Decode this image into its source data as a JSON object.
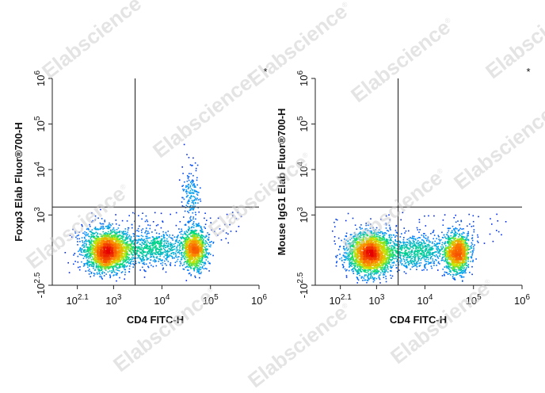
{
  "watermark": {
    "text": "Elabscience",
    "mark": "®"
  },
  "chart_data": [
    {
      "type": "scatter",
      "subtype": "flow-cytometry-density-dot-plot",
      "corner_mark": "*",
      "xlabel": "CD4 FITC-H",
      "ylabel": "Foxp3 Elab Fluor®700-H",
      "x_scale": "logicle",
      "y_scale": "logicle",
      "xlim": [
        -126,
        1000000
      ],
      "ylim": [
        -316,
        1000000
      ],
      "x_ticks": [
        {
          "base": "10",
          "exp": "2.1",
          "value": 126
        },
        {
          "base": "10",
          "exp": "3",
          "value": 1000
        },
        {
          "base": "10",
          "exp": "4",
          "value": 10000
        },
        {
          "base": "10",
          "exp": "5",
          "value": 100000
        },
        {
          "base": "10",
          "exp": "6",
          "value": 1000000
        }
      ],
      "y_ticks": [
        {
          "base": "-10",
          "exp": "2.5",
          "value": -316
        },
        {
          "base": "10",
          "exp": "3",
          "value": 1000
        },
        {
          "base": "10",
          "exp": "4",
          "value": 10000
        },
        {
          "base": "10",
          "exp": "5",
          "value": 100000
        },
        {
          "base": "10",
          "exp": "6",
          "value": 1000000
        }
      ],
      "gate": {
        "x": 2800,
        "y": 1500
      },
      "populations": [
        {
          "name": "CD4- cluster",
          "x_center": 700,
          "y_center": 110,
          "count": 2300
        },
        {
          "name": "bridge",
          "x_center": 6000,
          "y_center": 140,
          "count": 700
        },
        {
          "name": "CD4+ Foxp3- cluster",
          "x_center": 45000,
          "y_center": 130,
          "count": 1100
        },
        {
          "name": "CD4+ Foxp3+ cluster",
          "x_center": 38000,
          "y_center": 5000,
          "count": 160
        }
      ]
    },
    {
      "type": "scatter",
      "subtype": "flow-cytometry-density-dot-plot",
      "corner_mark": "*",
      "xlabel": "CD4 FITC-H",
      "ylabel": "Mouse IgG1 Elab Fluor®700-H",
      "x_scale": "logicle",
      "y_scale": "logicle",
      "xlim": [
        -126,
        1000000
      ],
      "ylim": [
        -316,
        1000000
      ],
      "x_ticks": [
        {
          "base": "10",
          "exp": "2.1",
          "value": 126
        },
        {
          "base": "10",
          "exp": "3",
          "value": 1000
        },
        {
          "base": "10",
          "exp": "4",
          "value": 10000
        },
        {
          "base": "10",
          "exp": "5",
          "value": 100000
        },
        {
          "base": "10",
          "exp": "6",
          "value": 1000000
        }
      ],
      "y_ticks": [
        {
          "base": "-10",
          "exp": "2.5",
          "value": -316
        },
        {
          "base": "10",
          "exp": "3",
          "value": 1000
        },
        {
          "base": "10",
          "exp": "4",
          "value": 10000
        },
        {
          "base": "10",
          "exp": "5",
          "value": 100000
        },
        {
          "base": "10",
          "exp": "6",
          "value": 1000000
        }
      ],
      "gate": {
        "x": 2800,
        "y": 1500
      },
      "populations": [
        {
          "name": "CD4- cluster",
          "x_center": 700,
          "y_center": 80,
          "count": 2300
        },
        {
          "name": "bridge",
          "x_center": 6000,
          "y_center": 100,
          "count": 700
        },
        {
          "name": "CD4+ cluster",
          "x_center": 45000,
          "y_center": 90,
          "count": 1200
        }
      ]
    }
  ]
}
